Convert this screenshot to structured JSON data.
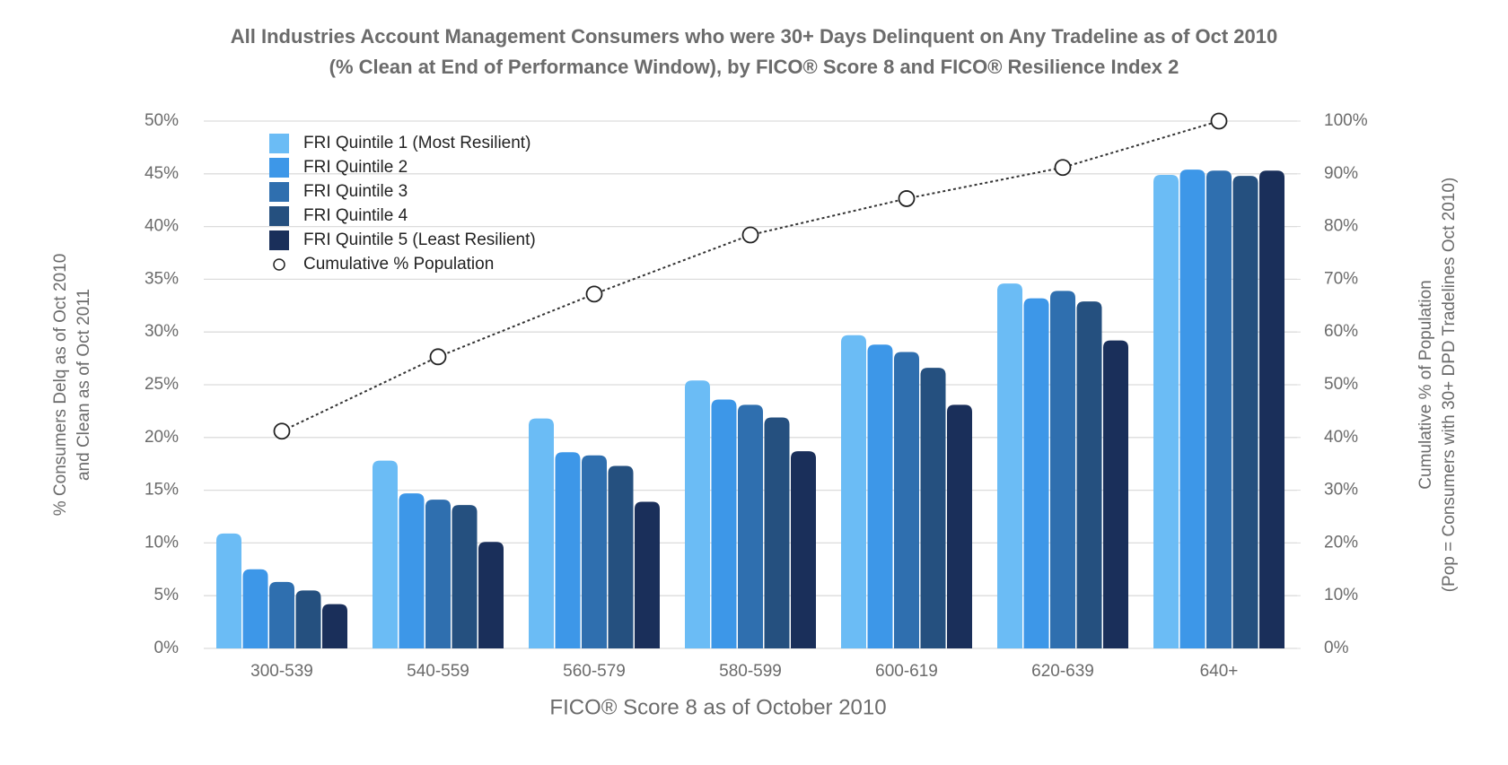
{
  "chart_data": {
    "type": "bar",
    "title": "All Industries Account Management Consumers who were 30+ Days Delinquent on Any Tradeline as of Oct 2010",
    "subtitle": "(% Clean at End of Performance Window), by FICO® Score 8 and FICO® Resilience Index 2",
    "xlabel": "FICO® Score 8 as of October 2010",
    "ylabel": [
      "% Consumers Delq as of Oct 2010",
      "and Clean as of Oct 2011"
    ],
    "y2label": [
      "Cumulative % of Population",
      "(Pop = Consumers with 30+ DPD Tradelines Oct 2010)"
    ],
    "categories": [
      "300-539",
      "540-559",
      "560-579",
      "580-599",
      "600-619",
      "620-639",
      "640+"
    ],
    "series": [
      {
        "name": "FRI Quintile 1 (Most Resilient)",
        "color": "#6bbcf5",
        "values": [
          10.9,
          17.8,
          21.8,
          25.4,
          29.7,
          34.6,
          44.9
        ]
      },
      {
        "name": "FRI Quintile 2",
        "color": "#3d97e8",
        "values": [
          7.5,
          14.7,
          18.6,
          23.6,
          28.8,
          33.2,
          45.4
        ]
      },
      {
        "name": "FRI Quintile 3",
        "color": "#2f6faf",
        "values": [
          6.3,
          14.1,
          18.3,
          23.1,
          28.1,
          33.9,
          45.3
        ]
      },
      {
        "name": "FRI Quintile 4",
        "color": "#25507f",
        "values": [
          5.5,
          13.6,
          17.3,
          21.9,
          26.6,
          32.9,
          44.8
        ]
      },
      {
        "name": "FRI Quintile 5 (Least Resilient)",
        "color": "#1a2f5a",
        "values": [
          4.2,
          10.1,
          13.9,
          18.7,
          23.1,
          29.2,
          45.3
        ]
      },
      {
        "name": "Cumulative % Population",
        "type": "line",
        "axis": "y2",
        "color": "#333333",
        "values": [
          41.2,
          55.3,
          67.2,
          78.4,
          85.3,
          91.2,
          100
        ]
      }
    ],
    "ylim": [
      0,
      50
    ],
    "yticks": [
      {
        "value": 0,
        "label": "0%"
      },
      {
        "value": 5,
        "label": "5%"
      },
      {
        "value": 10,
        "label": "10%"
      },
      {
        "value": 15,
        "label": "15%"
      },
      {
        "value": 20,
        "label": "20%"
      },
      {
        "value": 25,
        "label": "25%"
      },
      {
        "value": 30,
        "label": "30%"
      },
      {
        "value": 35,
        "label": "35%"
      },
      {
        "value": 40,
        "label": "40%"
      },
      {
        "value": 45,
        "label": "45%"
      },
      {
        "value": 50,
        "label": "50%"
      }
    ],
    "y2lim": [
      0,
      100
    ],
    "y2ticks": [
      {
        "value": 0,
        "label": "0%"
      },
      {
        "value": 10,
        "label": "10%"
      },
      {
        "value": 20,
        "label": "20%"
      },
      {
        "value": 30,
        "label": "30%"
      },
      {
        "value": 40,
        "label": "40%"
      },
      {
        "value": 50,
        "label": "50%"
      },
      {
        "value": 60,
        "label": "60%"
      },
      {
        "value": 70,
        "label": "70%"
      },
      {
        "value": 80,
        "label": "80%"
      },
      {
        "value": 90,
        "label": "90%"
      },
      {
        "value": 100,
        "label": "100%"
      }
    ],
    "grid": true,
    "legend": "upper-left"
  }
}
